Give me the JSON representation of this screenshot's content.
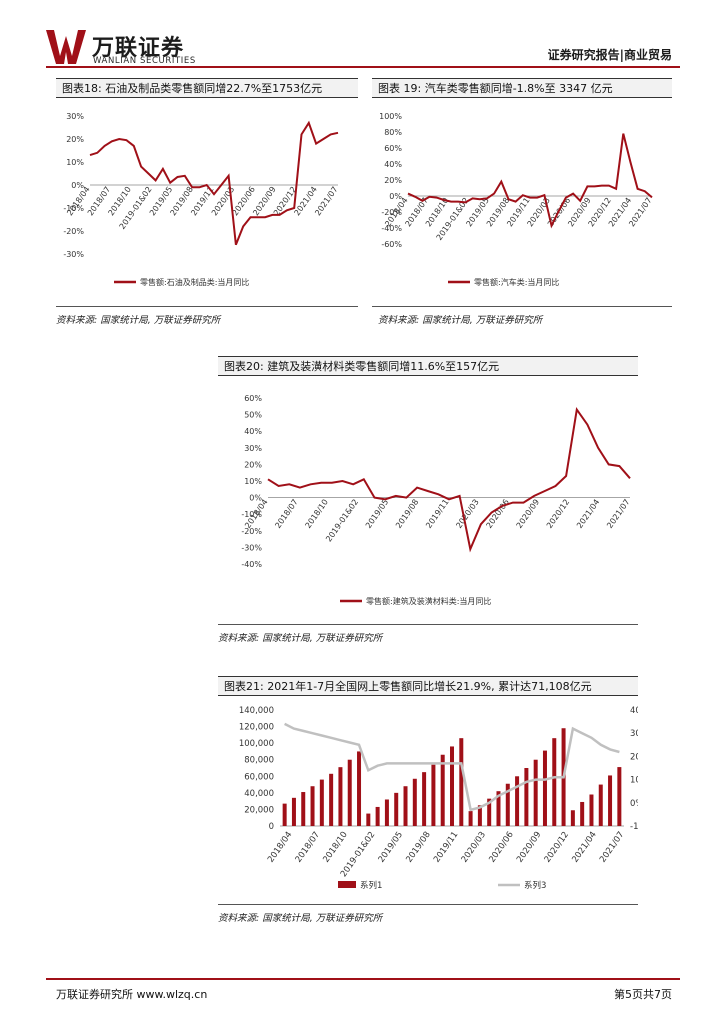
{
  "header": {
    "logo_cn": "万联证券",
    "logo_en": "WANLIAN SECURITIES",
    "report_type": "证券研究报告|商业贸易"
  },
  "charts": [
    {
      "title": "图表18: 石油及制品类零售额同增22.7%至1753亿元",
      "source": "资料来源: 国家统计局, 万联证券研究所",
      "legend": "零售额:石油及制品类:当月同比",
      "chart_data": {
        "type": "line",
        "y_ticks": [
          "30%",
          "20%",
          "10%",
          "0%",
          "-10%",
          "-20%",
          "-30%"
        ],
        "ylim": [
          -30,
          30
        ],
        "x_ticks": [
          "2018/04",
          "2018/07",
          "2018/10",
          "2019-01&02",
          "2019/05",
          "2019/08",
          "2019/11",
          "2020/03",
          "2020/06",
          "2020/09",
          "2020/12",
          "2021/04",
          "2021/07"
        ],
        "series": [
          {
            "name": "零售额:石油及制品类:当月同比",
            "color": "#a01018",
            "values": [
              13,
              14,
              17,
              19,
              20,
              19.5,
              17,
              8,
              5,
              2,
              7,
              1,
              3.5,
              4,
              -1,
              -1,
              0,
              -4,
              0,
              4,
              -26,
              -18,
              -14,
              -14,
              -14,
              -13,
              -13,
              -11,
              -10,
              22,
              27,
              18,
              20,
              22,
              22.7
            ]
          }
        ]
      }
    },
    {
      "title": "图表 19: 汽车类零售额同增-1.8%至 3347 亿元",
      "source": "资料来源: 国家统计局, 万联证券研究所",
      "legend": "零售额:汽车类:当月同比",
      "chart_data": {
        "type": "line",
        "y_ticks": [
          "100%",
          "80%",
          "60%",
          "40%",
          "20%",
          "0%",
          "-20%",
          "-40%",
          "-60%"
        ],
        "ylim": [
          -60,
          100
        ],
        "x_ticks": [
          "2018/04",
          "2018/07",
          "2018/10",
          "2019-01&02",
          "2019/05",
          "2019/08",
          "2019/11",
          "2020/03",
          "2020/06",
          "2020/09",
          "2020/12",
          "2021/04",
          "2021/07"
        ],
        "series": [
          {
            "name": "零售额:汽车类:当月同比",
            "color": "#a01018",
            "values": [
              3,
              -1,
              -6,
              -1,
              -2,
              -5,
              -7,
              -7,
              -8,
              -3,
              -4,
              -3,
              3,
              18,
              -4,
              -7,
              1,
              -2,
              -2,
              1,
              -37,
              -19,
              -2,
              3,
              -6,
              12,
              12,
              13,
              13,
              9,
              78,
              42,
              9,
              6,
              -1.8
            ]
          }
        ]
      }
    },
    {
      "title": "图表20: 建筑及装潢材料类零售额同增11.6%至157亿元",
      "source": "资料来源: 国家统计局, 万联证券研究所",
      "legend": "零售额:建筑及装潢材料类:当月同比",
      "chart_data": {
        "type": "line",
        "y_ticks": [
          "60%",
          "50%",
          "40%",
          "30%",
          "20%",
          "10%",
          "0%",
          "-10%",
          "-20%",
          "-30%",
          "-40%"
        ],
        "ylim": [
          -40,
          60
        ],
        "x_ticks": [
          "2018/04",
          "2018/07",
          "2018/10",
          "2019-01&02",
          "2019/05",
          "2019/08",
          "2019/11",
          "2020/03",
          "2020/06",
          "2020/09",
          "2020/12",
          "2021/04",
          "2021/07"
        ],
        "series": [
          {
            "name": "零售额:建筑及装潢材料类:当月同比",
            "color": "#a01018",
            "values": [
              11,
              7,
              8,
              6,
              8,
              9,
              9,
              10,
              8,
              11,
              0,
              -1,
              1,
              0,
              6,
              4,
              2,
              -1,
              1,
              -31,
              -16,
              -9,
              -5,
              -3,
              -3,
              1,
              4,
              7,
              13,
              53,
              44,
              30,
              20,
              19,
              11.6
            ]
          }
        ]
      }
    },
    {
      "title": "图表21: 2021年1-7月全国网上零售额同比增长21.9%, 累计达71,108亿元",
      "source": "资料来源: 国家统计局, 万联证券研究所",
      "legend_bar": "系列1",
      "legend_line": "系列3",
      "chart_data": {
        "type": "bar",
        "y_ticks_left": [
          "140,000",
          "120,000",
          "100,000",
          "80,000",
          "60,000",
          "40,000",
          "20,000",
          "0"
        ],
        "ylim_left": [
          0,
          140000
        ],
        "y_ticks_right": [
          "40%",
          "30%",
          "20%",
          "10%",
          "0%",
          "-10%"
        ],
        "ylim_right": [
          -10,
          40
        ],
        "x_ticks": [
          "2018/04",
          "2018/07",
          "2018/10",
          "2019-01&02",
          "2019/05",
          "2019/08",
          "2019/11",
          "2020/03",
          "2020/06",
          "2020/09",
          "2020/12",
          "2021/04",
          "2021/07"
        ],
        "series": [
          {
            "name": "系列1",
            "color": "#a01018",
            "axis": "left",
            "values": [
              27000,
              34000,
              41000,
              48000,
              56000,
              63000,
              71000,
              80000,
              90000,
              15000,
              23000,
              32000,
              40000,
              48000,
              57000,
              65000,
              74000,
              86000,
              96000,
              106000,
              18000,
              25000,
              33000,
              42000,
              51000,
              60000,
              70000,
              80000,
              91000,
              106000,
              118000,
              19000,
              29000,
              38000,
              50000,
              61000,
              71108
            ]
          },
          {
            "name": "系列3",
            "color": "#c0c0c0",
            "axis": "right",
            "values": [
              34,
              32,
              31,
              30,
              29,
              28,
              27,
              26,
              25,
              14,
              16,
              17,
              17,
              17,
              17,
              17,
              17,
              17,
              17,
              17,
              -3,
              -2,
              0,
              3,
              5,
              7,
              9,
              10,
              10,
              11,
              11,
              32,
              30,
              28,
              25,
              23,
              21.9
            ]
          }
        ]
      }
    }
  ],
  "footer": {
    "left": "万联证券研究所 www.wlzq.cn",
    "right": "第5页共7页"
  }
}
